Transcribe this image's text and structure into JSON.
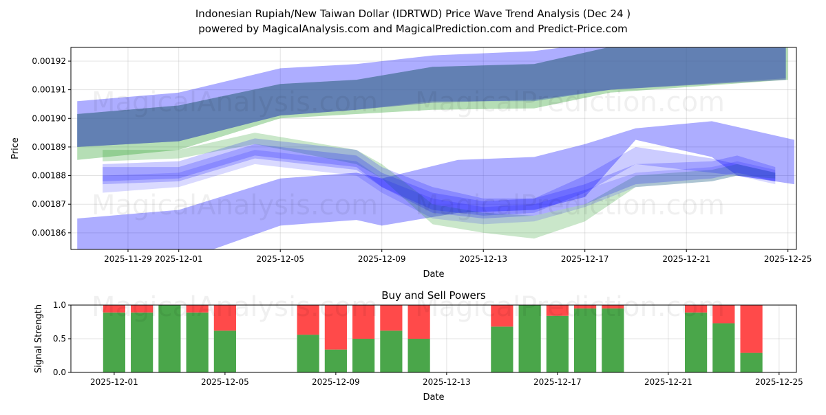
{
  "title_line1": "Indonesian Rupiah/New Taiwan Dollar (IDRTWD) Price Wave Trend Analysis (Dec 24 )",
  "title_line2": "powered by MagicalAnalysis.com and MagicalPrediction.com and Predict-Price.com",
  "watermarks": [
    "MagicalAnalysis.com",
    "MagicalPrediction.com"
  ],
  "chart_data": [
    {
      "type": "area",
      "title": "",
      "xlabel": "Date",
      "ylabel": "Price",
      "xlim": [
        "2025-11-26T18:00",
        "2025-12-25T08:00"
      ],
      "ylim": [
        0.0018542,
        0.0019248
      ],
      "grid": true,
      "xticks": [
        "2025-11-29",
        "2025-12-01",
        "2025-12-05",
        "2025-12-09",
        "2025-12-13",
        "2025-12-17",
        "2025-12-21",
        "2025-12-25"
      ],
      "yticks": [
        "0.00186",
        "0.00187",
        "0.00188",
        "0.00189",
        "0.00190",
        "0.00191",
        "0.00192"
      ],
      "bands": [
        {
          "name": "upper-outer-band",
          "color": "#0000ff",
          "alpha": 0.32,
          "x": [
            "2025-11-27",
            "2025-12-01",
            "2025-12-05",
            "2025-12-08",
            "2025-12-11",
            "2025-12-15",
            "2025-12-18",
            "2025-12-24T22:00"
          ],
          "upper": [
            0.001906,
            0.001909,
            0.0019175,
            0.001919,
            0.001922,
            0.0019235,
            0.001927,
            0.001928
          ],
          "lower": [
            0.00189,
            0.001892,
            0.001901,
            0.001903,
            0.001906,
            0.001906,
            0.00191,
            0.001914
          ]
        },
        {
          "name": "upper-green-band",
          "color": "#2ca02c",
          "alpha": 0.35,
          "x": [
            "2025-11-27",
            "2025-12-01",
            "2025-12-05",
            "2025-12-08",
            "2025-12-11",
            "2025-12-15",
            "2025-12-18",
            "2025-12-25"
          ],
          "upper": [
            0.0019015,
            0.0019045,
            0.001912,
            0.0019135,
            0.001918,
            0.001919,
            0.001925,
            0.001925
          ],
          "lower": [
            0.0018855,
            0.001889,
            0.0019,
            0.0019015,
            0.001903,
            0.0019035,
            0.001909,
            0.0019135
          ]
        },
        {
          "name": "upper-core-band",
          "color": "#4a5fb0",
          "alpha": 0.55,
          "x": [
            "2025-11-27",
            "2025-12-01",
            "2025-12-05",
            "2025-12-08",
            "2025-12-11",
            "2025-12-15",
            "2025-12-18",
            "2025-12-24T22:00"
          ],
          "upper": [
            0.0019015,
            0.0019045,
            0.001912,
            0.0019135,
            0.001918,
            0.001919,
            0.001925,
            0.001925
          ],
          "lower": [
            0.00189,
            0.001892,
            0.001901,
            0.001903,
            0.0019055,
            0.0019065,
            0.00191,
            0.0019135
          ]
        },
        {
          "name": "lower-outer-band",
          "color": "#0000ff",
          "alpha": 0.32,
          "x": [
            "2025-11-27",
            "2025-12-01",
            "2025-12-05",
            "2025-12-08",
            "2025-12-09",
            "2025-12-12",
            "2025-12-15",
            "2025-12-17",
            "2025-12-19",
            "2025-12-22",
            "2025-12-23",
            "2025-12-25T06:00"
          ],
          "upper": [
            0.001865,
            0.001868,
            0.001879,
            0.001881,
            0.001879,
            0.0018855,
            0.0018865,
            0.001891,
            0.0018965,
            0.001899,
            0.001897,
            0.0018925
          ],
          "lower": [
            0.001852,
            0.00185,
            0.0018625,
            0.0018645,
            0.0018625,
            0.001867,
            0.001868,
            0.0018725,
            0.0018925,
            0.0018865,
            0.00188,
            0.001877
          ]
        },
        {
          "name": "wave-band-1",
          "color": "#2ca02c",
          "alpha": 0.25,
          "x": [
            "2025-11-28",
            "2025-12-01",
            "2025-12-04",
            "2025-12-08",
            "2025-12-09",
            "2025-12-11",
            "2025-12-13",
            "2025-12-15",
            "2025-12-17",
            "2025-12-19",
            "2025-12-22",
            "2025-12-23",
            "2025-12-24T12:00"
          ],
          "upper": [
            0.001889,
            0.001889,
            0.001895,
            0.001889,
            0.001884,
            0.00187,
            0.001867,
            0.001866,
            0.00187,
            0.00188,
            0.001882,
            0.001884,
            0.001881
          ],
          "lower": [
            0.001885,
            0.001886,
            0.001891,
            0.001884,
            0.001879,
            0.001863,
            0.00186,
            0.001858,
            0.001864,
            0.001876,
            0.001878,
            0.00188,
            0.001879
          ]
        },
        {
          "name": "wave-band-2",
          "color": "#0000ff",
          "alpha": 0.2,
          "x": [
            "2025-11-28",
            "2025-12-01",
            "2025-12-04",
            "2025-12-08",
            "2025-12-09",
            "2025-12-11",
            "2025-12-13",
            "2025-12-15",
            "2025-12-17",
            "2025-12-19",
            "2025-12-22",
            "2025-12-23",
            "2025-12-24T12:00"
          ],
          "upper": [
            0.001884,
            0.001885,
            0.001893,
            0.001889,
            0.001883,
            0.001876,
            0.001872,
            0.001872,
            0.001877,
            0.001884,
            0.001885,
            0.001887,
            0.001883
          ],
          "lower": [
            0.001877,
            0.001878,
            0.001886,
            0.001882,
            0.001876,
            0.001867,
            0.001865,
            0.001866,
            0.00187,
            0.001877,
            0.001879,
            0.001881,
            0.001878
          ]
        },
        {
          "name": "wave-band-3",
          "color": "#0000ff",
          "alpha": 0.2,
          "x": [
            "2025-11-28",
            "2025-12-01",
            "2025-12-04",
            "2025-12-08",
            "2025-12-09",
            "2025-12-11",
            "2025-12-13",
            "2025-12-15",
            "2025-12-17",
            "2025-12-19",
            "2025-12-22",
            "2025-12-23",
            "2025-12-24T12:00"
          ],
          "upper": [
            0.001883,
            0.001883,
            0.001891,
            0.001887,
            0.001881,
            0.001874,
            0.001871,
            0.001872,
            0.00188,
            0.00189,
            0.001886,
            0.001884,
            0.001881
          ],
          "lower": [
            0.001878,
            0.001879,
            0.001887,
            0.001883,
            0.001876,
            0.001868,
            0.001866,
            0.001867,
            0.001874,
            0.001884,
            0.001881,
            0.00188,
            0.001878
          ]
        },
        {
          "name": "wave-band-4",
          "color": "#0000ff",
          "alpha": 0.15,
          "x": [
            "2025-11-28",
            "2025-12-01",
            "2025-12-04",
            "2025-12-08",
            "2025-12-09",
            "2025-12-11",
            "2025-12-13",
            "2025-12-15",
            "2025-12-17",
            "2025-12-19",
            "2025-12-22",
            "2025-12-23",
            "2025-12-24T12:00"
          ],
          "upper": [
            0.00188,
            0.001881,
            0.001889,
            0.001885,
            0.001879,
            0.001872,
            0.001869,
            0.00187,
            0.001875,
            0.001881,
            0.001883,
            0.001885,
            0.001882
          ],
          "lower": [
            0.001874,
            0.001876,
            0.001884,
            0.00188,
            0.001874,
            0.001865,
            0.001863,
            0.001864,
            0.001869,
            0.001876,
            0.001878,
            0.00188,
            0.001877
          ]
        }
      ]
    },
    {
      "type": "bar",
      "title": "Buy and Sell Powers",
      "xlabel": "Date",
      "ylabel": "Signal Strength",
      "xlim": [
        "2025-11-29T10:30",
        "2025-12-25T15:00"
      ],
      "ylim": [
        0,
        1
      ],
      "grid": true,
      "xticks": [
        "2025-12-01",
        "2025-12-05",
        "2025-12-09",
        "2025-12-13",
        "2025-12-17",
        "2025-12-21",
        "2025-12-25"
      ],
      "yticks": [
        "0.0",
        "0.5",
        "1.0"
      ],
      "colors": {
        "buy": "#4aa64a",
        "sell": "#ff4a4a"
      },
      "categories": [
        "2025-12-01",
        "2025-12-02",
        "2025-12-03",
        "2025-12-04",
        "2025-12-05",
        "2025-12-08",
        "2025-12-09",
        "2025-12-10",
        "2025-12-11",
        "2025-12-12",
        "2025-12-15",
        "2025-12-16",
        "2025-12-17",
        "2025-12-18",
        "2025-12-19",
        "2025-12-22",
        "2025-12-23",
        "2025-12-24"
      ],
      "series": [
        {
          "name": "Buy",
          "values": [
            0.89,
            0.89,
            1.0,
            0.89,
            0.62,
            0.56,
            0.34,
            0.5,
            0.62,
            0.5,
            0.68,
            1.0,
            0.84,
            0.95,
            0.95,
            0.89,
            0.73,
            0.29
          ]
        },
        {
          "name": "Sell",
          "values": [
            0.11,
            0.11,
            0.0,
            0.11,
            0.38,
            0.44,
            0.66,
            0.5,
            0.38,
            0.5,
            0.32,
            0.0,
            0.16,
            0.05,
            0.05,
            0.11,
            0.27,
            0.71
          ]
        }
      ]
    }
  ]
}
